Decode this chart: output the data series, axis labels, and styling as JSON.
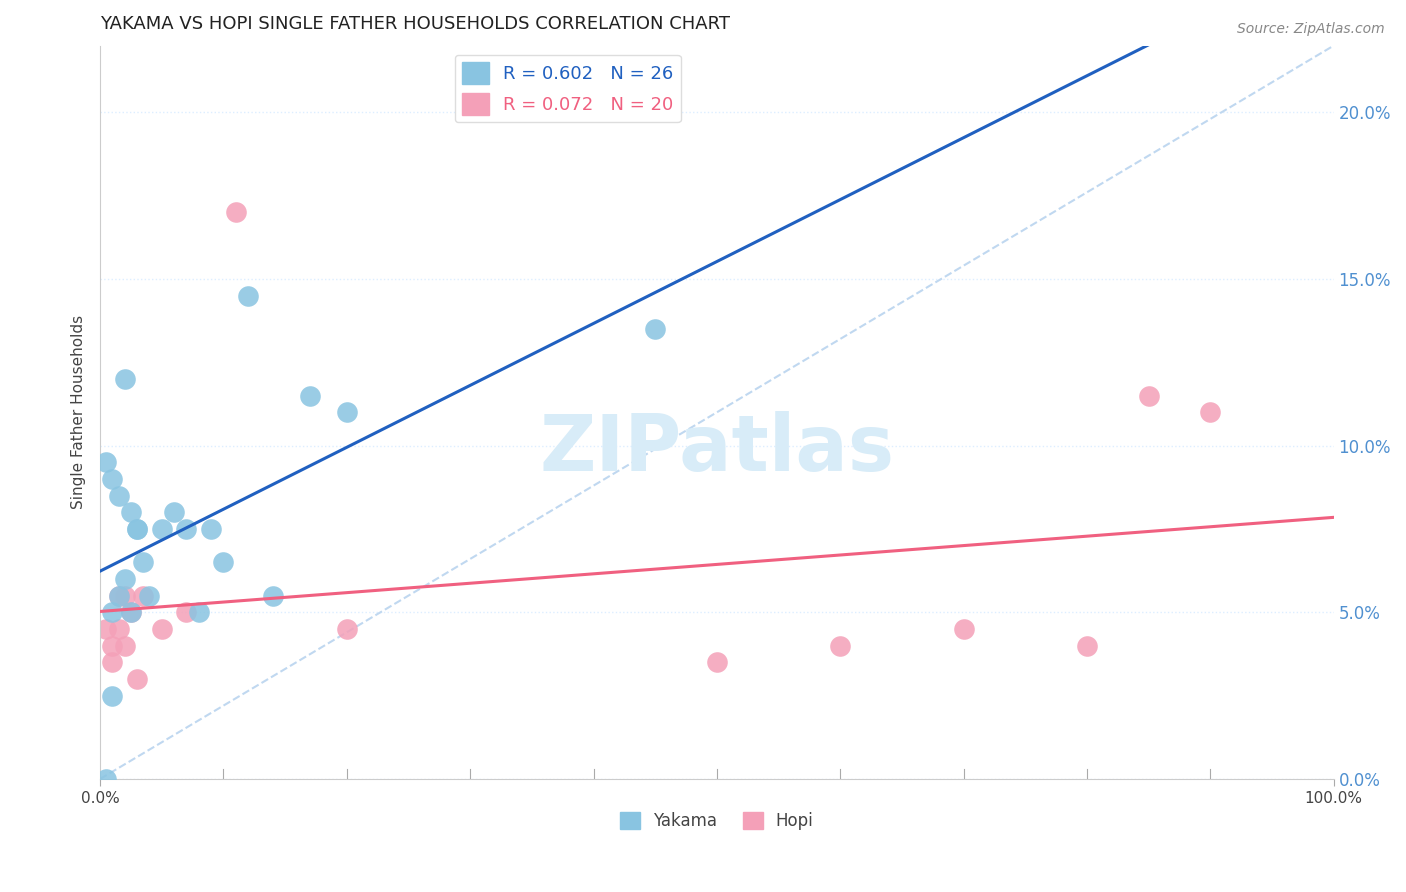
{
  "title": "YAKAMA VS HOPI SINGLE FATHER HOUSEHOLDS CORRELATION CHART",
  "source": "Source: ZipAtlas.com",
  "ylabel": "Single Father Households",
  "legend_entries": [
    {
      "label": "R = 0.602   N = 26",
      "color": "#a8c4e0"
    },
    {
      "label": "R = 0.072   N = 20",
      "color": "#f0a8b8"
    }
  ],
  "legend_bottom": [
    "Yakama",
    "Hopi"
  ],
  "yakama_x": [
    0.5,
    1.0,
    1.5,
    2.0,
    2.5,
    3.0,
    3.5,
    4.0,
    5.0,
    6.0,
    7.0,
    8.0,
    9.0,
    10.0,
    12.0,
    14.0,
    17.0,
    1.0,
    1.5,
    2.0,
    2.5,
    3.0,
    20.0,
    45.0,
    1.0,
    0.5
  ],
  "yakama_y": [
    9.5,
    9.0,
    8.5,
    12.0,
    8.0,
    7.5,
    6.5,
    5.5,
    7.5,
    8.0,
    7.5,
    5.0,
    7.5,
    6.5,
    14.5,
    5.5,
    11.5,
    5.0,
    5.5,
    6.0,
    5.0,
    7.5,
    11.0,
    13.5,
    2.5,
    0.0
  ],
  "hopi_x": [
    0.5,
    1.0,
    1.5,
    2.0,
    2.5,
    3.5,
    5.0,
    7.0,
    11.0,
    20.0,
    50.0,
    60.0,
    70.0,
    80.0,
    85.0,
    90.0,
    1.0,
    1.5,
    2.0,
    3.0
  ],
  "hopi_y": [
    4.5,
    4.0,
    5.5,
    5.5,
    5.0,
    5.5,
    4.5,
    5.0,
    17.0,
    4.5,
    3.5,
    4.0,
    4.5,
    4.0,
    11.5,
    11.0,
    3.5,
    4.5,
    4.0,
    3.0
  ],
  "yakama_color": "#89c4e1",
  "hopi_color": "#f4a0b8",
  "yakama_line_color": "#2060c0",
  "hopi_line_color": "#f06080",
  "diag_line_color": "#c0d8f0",
  "bg_color": "#ffffff",
  "grid_color": "#ddeeff",
  "ylim_min": 0,
  "ylim_max": 22,
  "xlim_min": 0,
  "xlim_max": 100,
  "yticks": [
    0,
    5,
    10,
    15,
    20
  ],
  "ytick_labels": [
    "0.0%",
    "5.0%",
    "10.0%",
    "15.0%",
    "20.0%"
  ],
  "ytick_color": "#5090d0",
  "watermark": "ZIPatlas",
  "watermark_color": "#d8ecf8"
}
